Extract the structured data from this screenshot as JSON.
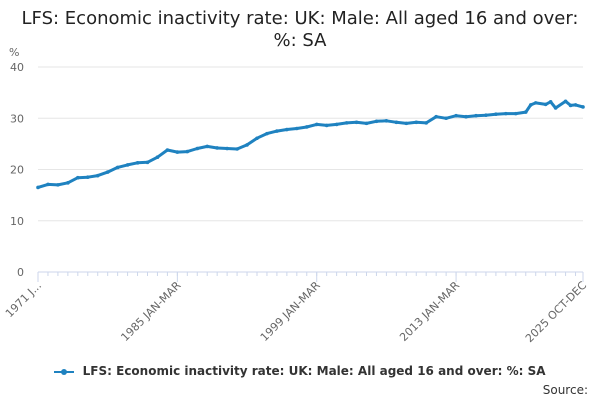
{
  "title": "LFS: Economic inactivity rate: UK: Male: All aged 16 and over: %: SA",
  "source_label": "Source:",
  "colors": {
    "series": "#1f82c0",
    "grid": "#e6e6e6",
    "axis": "#ccd6eb",
    "text": "#666666"
  },
  "chart_data": {
    "type": "line",
    "title": "LFS: Economic inactivity rate: UK: Male: All aged 16 and over: %: SA",
    "ylabel": "%",
    "xlabel": "",
    "ylim": [
      0,
      40
    ],
    "yticks": [
      0,
      10,
      20,
      30,
      40
    ],
    "xticks": [
      "1971 J...",
      "1985 JAN-MAR",
      "1999 JAN-MAR",
      "2013 JAN-MAR",
      "2025 OCT-DEC"
    ],
    "xrange": [
      1971.0,
      2025.75
    ],
    "grid": true,
    "legend_position": "bottom",
    "series": [
      {
        "name": "LFS: Economic inactivity rate: UK: Male: All aged 16 and over: %: SA",
        "x": [
          1971.0,
          1972.0,
          1973.0,
          1974.0,
          1975.0,
          1976.0,
          1977.0,
          1978.0,
          1979.0,
          1980.0,
          1981.0,
          1982.0,
          1983.0,
          1984.0,
          1985.0,
          1986.0,
          1987.0,
          1988.0,
          1989.0,
          1990.0,
          1991.0,
          1992.0,
          1993.0,
          1994.0,
          1995.0,
          1996.0,
          1997.0,
          1998.0,
          1999.0,
          2000.0,
          2001.0,
          2002.0,
          2003.0,
          2004.0,
          2005.0,
          2006.0,
          2007.0,
          2008.0,
          2009.0,
          2010.0,
          2011.0,
          2012.0,
          2013.0,
          2014.0,
          2015.0,
          2016.0,
          2017.0,
          2018.0,
          2019.0,
          2020.0,
          2020.5,
          2021.0,
          2022.0,
          2022.5,
          2023.0,
          2024.0,
          2024.5,
          2025.0,
          2025.75
        ],
        "y": [
          16.5,
          17.1,
          17.0,
          17.4,
          18.4,
          18.5,
          18.8,
          19.5,
          20.4,
          20.9,
          21.3,
          21.4,
          22.4,
          23.8,
          23.4,
          23.5,
          24.1,
          24.5,
          24.2,
          24.1,
          24.0,
          24.8,
          26.1,
          27.0,
          27.5,
          27.8,
          28.0,
          28.3,
          28.8,
          28.6,
          28.8,
          29.1,
          29.2,
          29.0,
          29.4,
          29.5,
          29.2,
          29.0,
          29.2,
          29.1,
          30.3,
          30.0,
          30.5,
          30.3,
          30.5,
          30.6,
          30.8,
          30.9,
          30.9,
          31.2,
          32.6,
          33.0,
          32.7,
          33.2,
          32.0,
          33.3,
          32.5,
          32.6,
          32.2
        ]
      }
    ]
  }
}
